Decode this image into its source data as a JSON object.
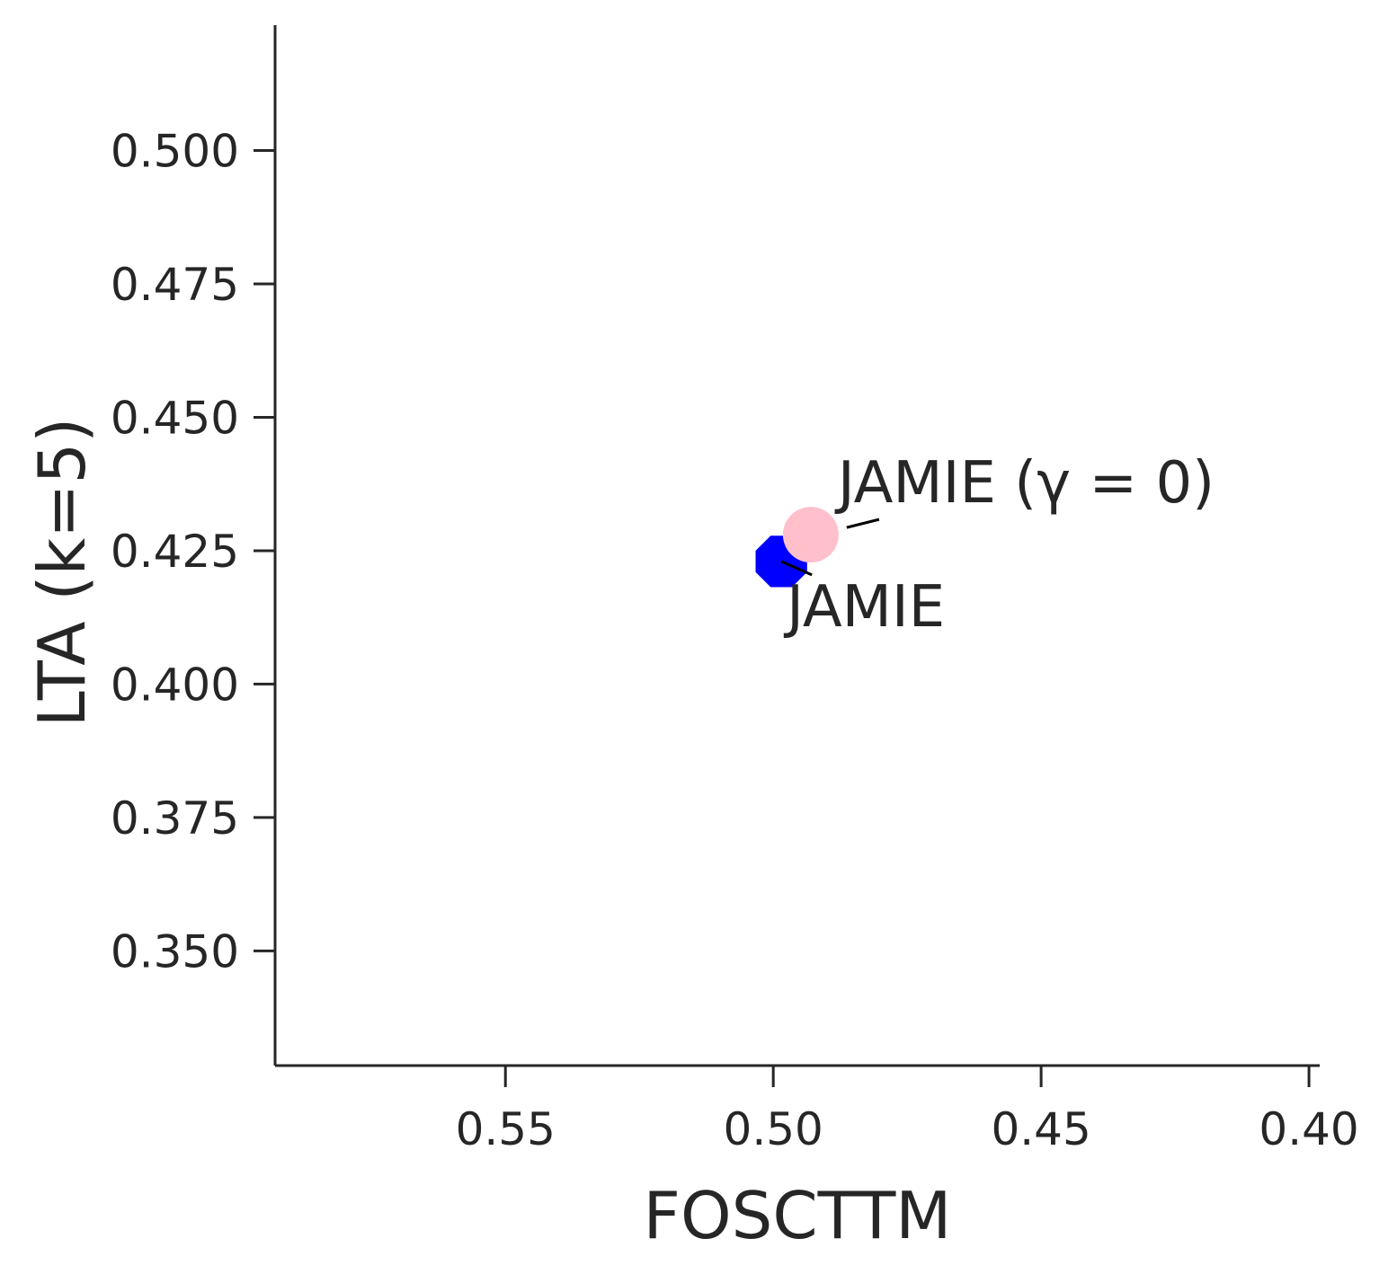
{
  "chart_data": {
    "type": "scatter",
    "xlabel": "FOSCTTM",
    "ylabel": "LTA (k=5)",
    "x_inverted": true,
    "xlim": [
      0.593,
      0.398
    ],
    "ylim": [
      0.3285,
      0.5235
    ],
    "xticks": [
      0.55,
      0.5,
      0.45,
      0.4
    ],
    "xtick_labels": [
      "0.55",
      "0.50",
      "0.45",
      "0.40"
    ],
    "yticks": [
      0.35,
      0.375,
      0.4,
      0.425,
      0.45,
      0.475,
      0.5
    ],
    "ytick_labels": [
      "0.350",
      "0.375",
      "0.400",
      "0.425",
      "0.450",
      "0.475",
      "0.500"
    ],
    "grid": false,
    "points": [
      {
        "label": "JAMIE",
        "x": 0.4985,
        "y": 0.423,
        "color": "#0000ff",
        "marker": "octagon"
      },
      {
        "label": "JAMIE (γ = 0)",
        "x": 0.493,
        "y": 0.428,
        "color": "#ffc0cb",
        "marker": "circle"
      }
    ]
  }
}
